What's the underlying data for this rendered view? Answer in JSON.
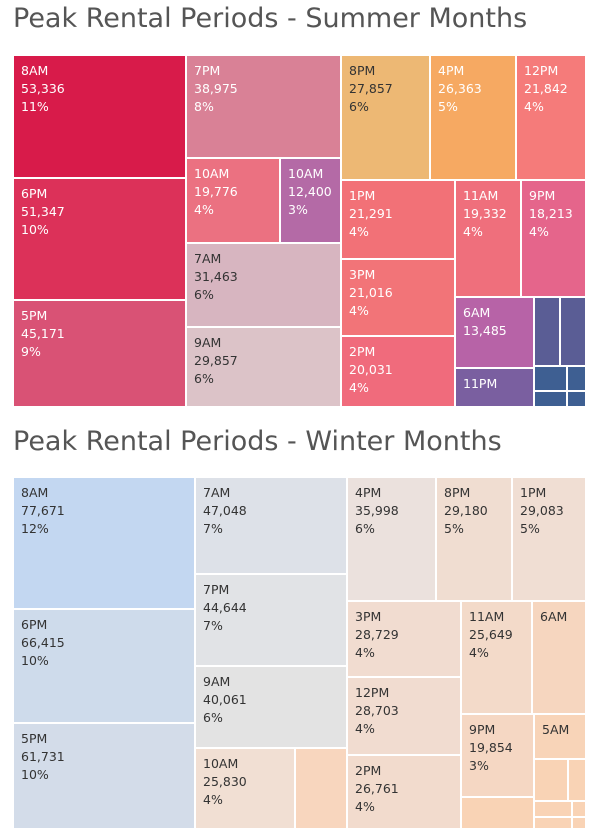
{
  "chart_data": [
    {
      "type": "treemap",
      "title": "Peak Rental Periods - Summer Months",
      "label_color": "#ffffff",
      "label_color_light": "#333333",
      "items": [
        {
          "label": "8AM",
          "value": "53,336",
          "pct": "11%",
          "color": "#d81b4a"
        },
        {
          "label": "6PM",
          "value": "51,347",
          "pct": "10%",
          "color": "#dc3159"
        },
        {
          "label": "5PM",
          "value": "45,171",
          "pct": "9%",
          "color": "#d95275"
        },
        {
          "label": "7PM",
          "value": "38,975",
          "pct": "8%",
          "color": "#d98196"
        },
        {
          "label": "10AM",
          "value": "19,776",
          "pct": "4%",
          "color": "#eb7181"
        },
        {
          "label": "10AM",
          "value": "12,400",
          "pct": "3%",
          "color": "#b46aa6"
        },
        {
          "label": "7AM",
          "value": "31,463",
          "pct": "6%",
          "color": "#d7b5c0"
        },
        {
          "label": "9AM",
          "value": "29,857",
          "pct": "6%",
          "color": "#dcc3c8"
        },
        {
          "label": "8PM",
          "value": "27,857",
          "pct": "6%",
          "color": "#edb874"
        },
        {
          "label": "4PM",
          "value": "26,363",
          "pct": "5%",
          "color": "#f6a962"
        },
        {
          "label": "12PM",
          "value": "21,842",
          "pct": "4%",
          "color": "#f57b7a"
        },
        {
          "label": "1PM",
          "value": "21,291",
          "pct": "4%",
          "color": "#f27177"
        },
        {
          "label": "11AM",
          "value": "19,332",
          "pct": "4%",
          "color": "#ef6f7c"
        },
        {
          "label": "9PM",
          "value": "18,213",
          "pct": "4%",
          "color": "#e5658b"
        },
        {
          "label": "3PM",
          "value": "21,016",
          "pct": "4%",
          "color": "#f27478"
        },
        {
          "label": "2PM",
          "value": "20,031",
          "pct": "4%",
          "color": "#f06b7c"
        },
        {
          "label": "6AM",
          "value": "13,485",
          "pct": "",
          "color": "#b763a7"
        },
        {
          "label": "11PM",
          "value": "",
          "pct": "",
          "color": "#7a5fa0"
        },
        {
          "label": "",
          "value": "",
          "pct": "",
          "color": "#5a5d95"
        },
        {
          "label": "",
          "value": "",
          "pct": "",
          "color": "#5a5d95"
        },
        {
          "label": "",
          "value": "",
          "pct": "",
          "color": "#3e5f92"
        },
        {
          "label": "",
          "value": "",
          "pct": "",
          "color": "#3e5f92"
        },
        {
          "label": "",
          "value": "",
          "pct": "",
          "color": "#3e5f92"
        },
        {
          "label": "",
          "value": "",
          "pct": "",
          "color": "#3e5f92"
        }
      ]
    },
    {
      "type": "treemap",
      "title": "Peak Rental Periods - Winter Months",
      "label_color": "#333333",
      "items": [
        {
          "label": "8AM",
          "value": "77,671",
          "pct": "12%",
          "color": "#c3d7f1"
        },
        {
          "label": "6PM",
          "value": "66,415",
          "pct": "10%",
          "color": "#cedbeb"
        },
        {
          "label": "5PM",
          "value": "61,731",
          "pct": "10%",
          "color": "#d3dce9"
        },
        {
          "label": "7AM",
          "value": "47,048",
          "pct": "7%",
          "color": "#dde1e8"
        },
        {
          "label": "7PM",
          "value": "44,644",
          "pct": "7%",
          "color": "#e1e3e6"
        },
        {
          "label": "9AM",
          "value": "40,061",
          "pct": "6%",
          "color": "#e3e3e3"
        },
        {
          "label": "10AM",
          "value": "25,830",
          "pct": "4%",
          "color": "#f1dfd3"
        },
        {
          "label": "",
          "value": "",
          "pct": "",
          "color": "#f8d6be"
        },
        {
          "label": "4PM",
          "value": "35,998",
          "pct": "6%",
          "color": "#ebe1dd"
        },
        {
          "label": "8PM",
          "value": "29,180",
          "pct": "5%",
          "color": "#f0ddd1"
        },
        {
          "label": "1PM",
          "value": "29,083",
          "pct": "5%",
          "color": "#f0ded3"
        },
        {
          "label": "3PM",
          "value": "28,729",
          "pct": "4%",
          "color": "#f1dcd0"
        },
        {
          "label": "12PM",
          "value": "28,703",
          "pct": "4%",
          "color": "#f1dcd0"
        },
        {
          "label": "2PM",
          "value": "26,761",
          "pct": "4%",
          "color": "#f2dbcd"
        },
        {
          "label": "11AM",
          "value": "25,649",
          "pct": "4%",
          "color": "#f3dac9"
        },
        {
          "label": "6AM",
          "value": "",
          "pct": "",
          "color": "#f6d6bf"
        },
        {
          "label": "9PM",
          "value": "19,854",
          "pct": "3%",
          "color": "#f5d7c3"
        },
        {
          "label": "5AM",
          "value": "",
          "pct": "",
          "color": "#f8d4b8"
        },
        {
          "label": "",
          "value": "",
          "pct": "",
          "color": "#f9d3b5"
        },
        {
          "label": "",
          "value": "",
          "pct": "",
          "color": "#f9d3b5"
        },
        {
          "label": "",
          "value": "",
          "pct": "",
          "color": "#f9d3b5"
        },
        {
          "label": "",
          "value": "",
          "pct": "",
          "color": "#f9d3b5"
        },
        {
          "label": "",
          "value": "",
          "pct": "",
          "color": "#f9d3b5"
        },
        {
          "label": "",
          "value": "",
          "pct": "",
          "color": "#f9d3b5"
        },
        {
          "label": "",
          "value": "",
          "pct": "",
          "color": "#f9d3b5"
        }
      ]
    }
  ]
}
